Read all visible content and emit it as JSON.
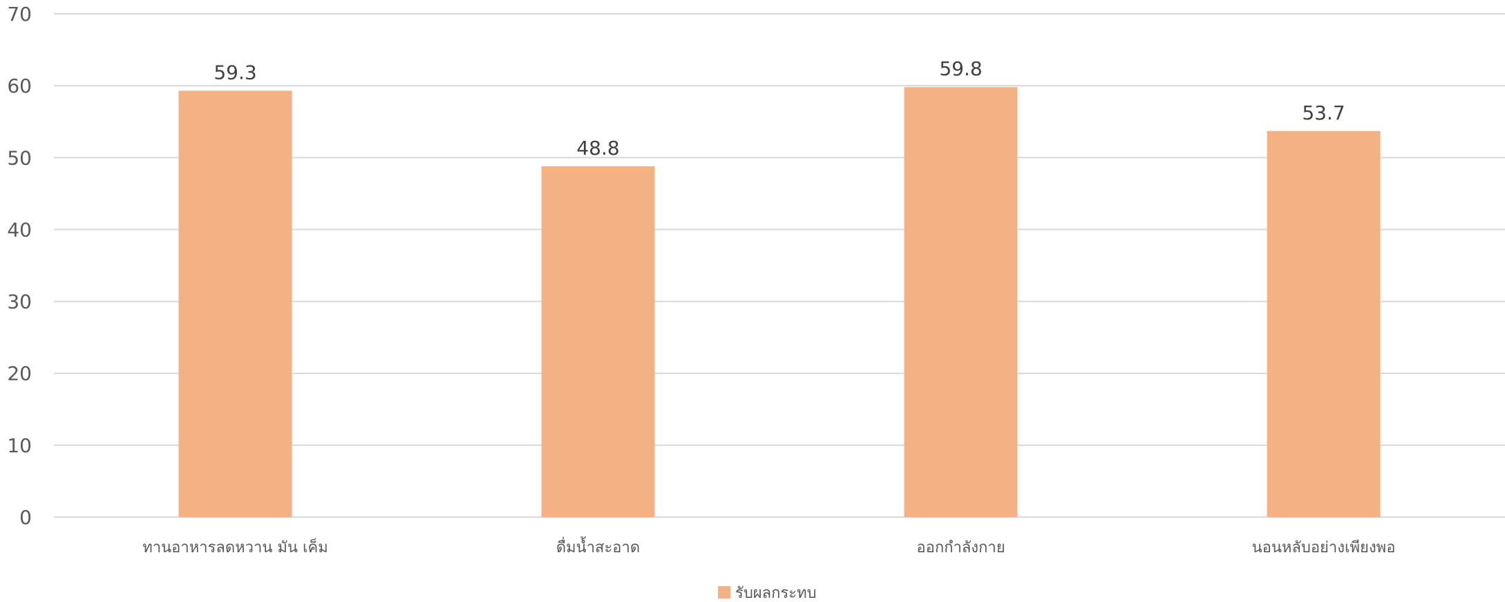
{
  "chart_data": {
    "type": "bar",
    "categories": [
      "ทานอาหารลดหวาน มัน เค็ม",
      "ดื่มน้ำสะอาด",
      "ออกกำลังกาย",
      "นอนหลับอย่างเพียงพอ"
    ],
    "series": [
      {
        "name": "รับผลกระทบ",
        "values": [
          59.3,
          48.8,
          59.8,
          53.7
        ],
        "color": "#f4b183"
      }
    ],
    "data_labels": [
      "59.3",
      "48.8",
      "59.8",
      "53.7"
    ],
    "ylim": [
      0,
      70
    ],
    "yticks": [
      0,
      10,
      20,
      30,
      40,
      50,
      60,
      70
    ],
    "title": "",
    "xlabel": "",
    "ylabel": "",
    "grid": true,
    "legend_position": "bottom"
  }
}
